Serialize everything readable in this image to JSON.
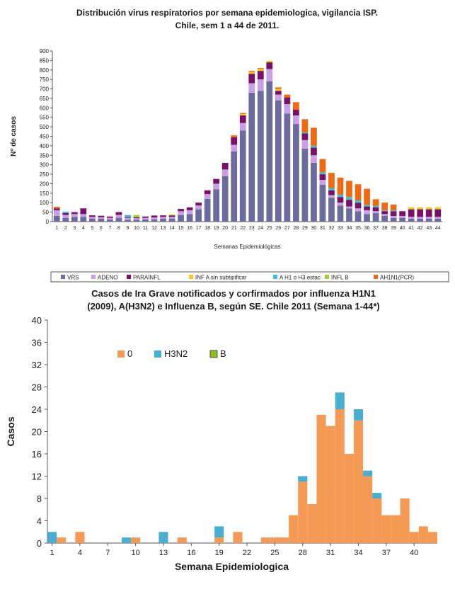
{
  "chart_data": [
    {
      "type": "bar",
      "stacked": true,
      "title": "Distribución virus respiratorios por semana epidemiologica, vigilancia ISP.",
      "subtitle": "Chile, sem 1 a 44 de 2011.",
      "xlabel": "Semanas Epidemiológicas",
      "ylabel": "N° de casos",
      "ylim": [
        0,
        900
      ],
      "yticks": [
        0,
        50,
        100,
        150,
        200,
        250,
        300,
        350,
        400,
        450,
        500,
        550,
        600,
        650,
        700,
        750,
        800,
        850,
        900
      ],
      "categories": [
        "1",
        "2",
        "3",
        "4",
        "5",
        "6",
        "7",
        "8",
        "9",
        "10",
        "11",
        "12",
        "13",
        "14",
        "15",
        "16",
        "17",
        "18",
        "19",
        "20",
        "21",
        "22",
        "23",
        "24",
        "25",
        "26",
        "27",
        "28",
        "29",
        "30",
        "31",
        "32",
        "33",
        "34",
        "35",
        "36",
        "37",
        "38",
        "39",
        "40",
        "41",
        "42",
        "43",
        "44"
      ],
      "legend_position": "bottom",
      "grid": false,
      "series": [
        {
          "name": "VRS",
          "color": "#6b6b9e",
          "values": [
            30,
            20,
            25,
            25,
            15,
            15,
            12,
            20,
            10,
            10,
            12,
            12,
            15,
            15,
            35,
            40,
            65,
            120,
            170,
            240,
            370,
            480,
            680,
            690,
            740,
            640,
            570,
            515,
            385,
            310,
            195,
            125,
            85,
            70,
            55,
            40,
            45,
            30,
            20,
            20,
            15,
            15,
            15,
            15
          ]
        },
        {
          "name": "ADENO",
          "color": "#c9a0e6",
          "values": [
            30,
            15,
            15,
            15,
            10,
            8,
            8,
            15,
            10,
            8,
            8,
            10,
            10,
            10,
            20,
            20,
            20,
            25,
            30,
            35,
            35,
            40,
            50,
            60,
            65,
            30,
            50,
            45,
            45,
            40,
            25,
            15,
            15,
            10,
            15,
            20,
            10,
            10,
            10,
            10,
            10,
            10,
            10,
            10
          ]
        },
        {
          "name": "PARAINFL",
          "color": "#7a1168",
          "values": [
            10,
            10,
            10,
            30,
            8,
            8,
            7,
            15,
            5,
            5,
            7,
            10,
            8,
            8,
            12,
            15,
            15,
            20,
            25,
            35,
            40,
            40,
            50,
            45,
            35,
            20,
            35,
            30,
            35,
            40,
            30,
            25,
            30,
            35,
            30,
            20,
            20,
            15,
            25,
            25,
            40,
            40,
            40,
            40
          ]
        },
        {
          "name": "INF A sin subtipificar",
          "color": "#f2cc1f",
          "values": [
            0,
            0,
            0,
            0,
            0,
            0,
            0,
            0,
            0,
            0,
            0,
            0,
            0,
            5,
            0,
            0,
            0,
            0,
            0,
            0,
            0,
            8,
            10,
            10,
            8,
            10,
            0,
            0,
            0,
            0,
            0,
            0,
            0,
            0,
            0,
            0,
            0,
            0,
            0,
            0,
            10,
            10,
            10,
            10
          ]
        },
        {
          "name": "A H1 o H3 estac",
          "color": "#3fbfcf",
          "values": [
            0,
            8,
            0,
            0,
            0,
            0,
            0,
            0,
            10,
            0,
            0,
            0,
            0,
            0,
            0,
            0,
            0,
            0,
            0,
            0,
            0,
            0,
            0,
            0,
            0,
            0,
            0,
            0,
            5,
            10,
            10,
            12,
            12,
            15,
            12,
            8,
            8,
            5,
            5,
            0,
            0,
            0,
            0,
            0
          ]
        },
        {
          "name": "INFL B",
          "color": "#9ad22f",
          "values": [
            0,
            0,
            0,
            0,
            0,
            0,
            0,
            0,
            0,
            12,
            0,
            0,
            0,
            0,
            0,
            0,
            0,
            0,
            0,
            0,
            0,
            0,
            0,
            0,
            0,
            0,
            0,
            0,
            0,
            0,
            0,
            0,
            0,
            0,
            0,
            0,
            0,
            0,
            0,
            0,
            0,
            0,
            0,
            0
          ]
        },
        {
          "name": "AH1N1(PCR)",
          "color": "#ef6a12",
          "values": [
            8,
            0,
            0,
            0,
            0,
            0,
            0,
            0,
            0,
            0,
            0,
            0,
            0,
            0,
            0,
            0,
            0,
            0,
            0,
            0,
            10,
            5,
            5,
            5,
            0,
            8,
            15,
            40,
            70,
            95,
            70,
            80,
            90,
            85,
            85,
            85,
            35,
            40,
            30,
            0,
            0,
            0,
            0,
            0
          ]
        }
      ]
    },
    {
      "type": "bar",
      "stacked": true,
      "title": "Casos de Ira Grave notificados y corfirmados por influenza H1N1",
      "subtitle": "(2009), A(H3N2) e Influenza B, según SE. Chile 2011 (Semana 1-44*)",
      "xlabel": "Semana Epidemiologica",
      "ylabel": "Casos",
      "ylim": [
        0,
        40
      ],
      "yticks": [
        0,
        4,
        8,
        12,
        16,
        20,
        24,
        28,
        32,
        36,
        40
      ],
      "x_start": 1,
      "xticks": [
        1,
        4,
        7,
        10,
        13,
        16,
        19,
        22,
        25,
        28,
        31,
        34,
        37,
        40
      ],
      "legend_position": "top-left",
      "grid": false,
      "series": [
        {
          "name": "0",
          "color": "#f59a55",
          "values": [
            0,
            1,
            0,
            2,
            0,
            0,
            0,
            0,
            0,
            1,
            0,
            0,
            0,
            0,
            1,
            0,
            0,
            0,
            1,
            0,
            2,
            0,
            0,
            1,
            1,
            1,
            5,
            11,
            7,
            23,
            21,
            24,
            16,
            22,
            12,
            8,
            5,
            5,
            8,
            2,
            3,
            2
          ]
        },
        {
          "name": "H3N2",
          "color": "#4aaed0",
          "values": [
            2,
            0,
            0,
            0,
            0,
            0,
            0,
            0,
            1,
            0,
            0,
            0,
            2,
            0,
            0,
            0,
            0,
            0,
            2,
            0,
            0,
            0,
            0,
            0,
            0,
            0,
            0,
            1,
            0,
            0,
            0,
            3,
            0,
            2,
            1,
            1,
            0,
            0,
            0,
            0,
            0,
            0
          ]
        },
        {
          "name": "B",
          "color": "#8fbf1f",
          "values": [
            0,
            0,
            0,
            0,
            0,
            0,
            0,
            0,
            0,
            0,
            0,
            0,
            0,
            0,
            0,
            0,
            0,
            0,
            0,
            0,
            0,
            0,
            0,
            0,
            0,
            0,
            0,
            0,
            0,
            0,
            0,
            0,
            0,
            0,
            0,
            0,
            0,
            0,
            0,
            0,
            0,
            0
          ]
        }
      ]
    }
  ]
}
